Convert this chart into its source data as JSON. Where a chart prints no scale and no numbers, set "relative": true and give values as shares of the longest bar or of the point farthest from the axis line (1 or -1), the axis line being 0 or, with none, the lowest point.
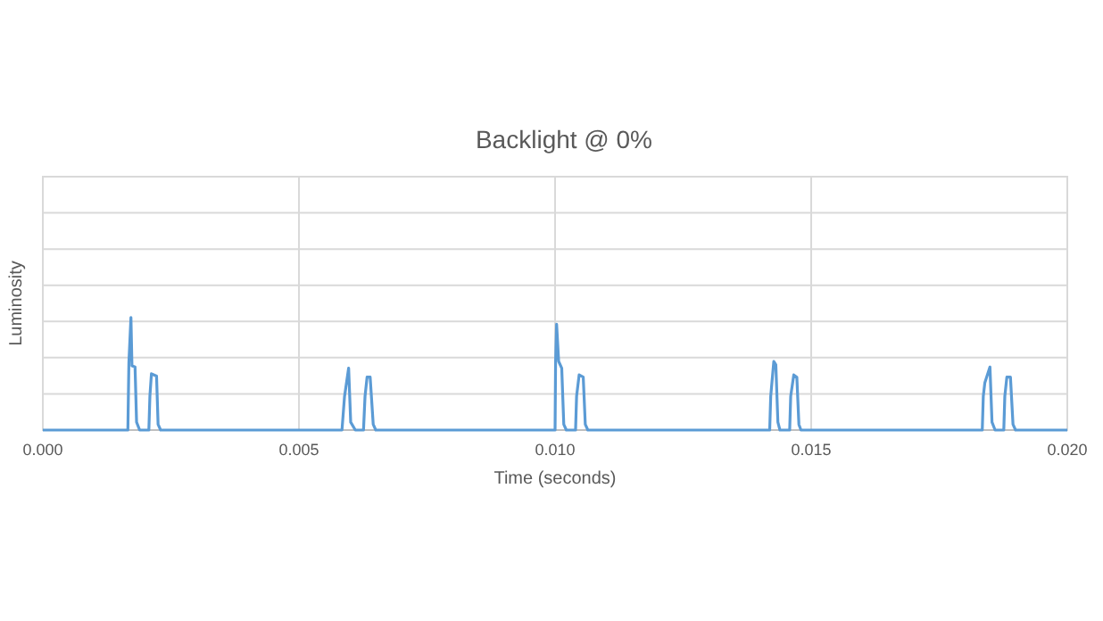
{
  "chart_data": {
    "type": "line",
    "title": "Backlight @ 0%",
    "xlabel": "Time (seconds)",
    "ylabel": "Luminosity",
    "relative": true,
    "grid": true,
    "marker": "none",
    "xlim": [
      0,
      0.02
    ],
    "xticks": [
      {
        "value": 0,
        "label": "0.000"
      },
      {
        "value": 0.005,
        "label": "0.005"
      },
      {
        "value": 0.01,
        "label": "0.010"
      },
      {
        "value": 0.015,
        "label": "0.015"
      },
      {
        "value": 0.02,
        "label": "0.020"
      }
    ],
    "series": [
      {
        "color": "#5b9bd5",
        "x": [
          0,
          0.00166,
          0.00168,
          0.00172,
          0.00174,
          0.0018,
          0.00183,
          0.00189,
          0.00207,
          0.00209,
          0.00212,
          0.00222,
          0.00225,
          0.0023,
          0.00584,
          0.00589,
          0.00597,
          0.00601,
          0.0061,
          0.00626,
          0.00629,
          0.00633,
          0.00639,
          0.00645,
          0.0065,
          0.01,
          0.01001,
          0.01003,
          0.01007,
          0.01013,
          0.01017,
          0.01022,
          0.0104,
          0.01042,
          0.01047,
          0.01055,
          0.01059,
          0.01064,
          0.01419,
          0.01421,
          0.01427,
          0.01431,
          0.01435,
          0.01439,
          0.01458,
          0.0146,
          0.01466,
          0.01472,
          0.01476,
          0.0148,
          0.01834,
          0.01836,
          0.01839,
          0.01849,
          0.01853,
          0.01859,
          0.01876,
          0.01878,
          0.01882,
          0.01889,
          0.01894,
          0.01899,
          0.02
        ],
        "values": [
          0,
          0,
          0.6,
          1,
          0.57,
          0.56,
          0.07,
          0,
          0,
          0.3,
          0.5,
          0.48,
          0.05,
          0,
          0,
          0.3,
          0.55,
          0.07,
          0,
          0,
          0.3,
          0.47,
          0.47,
          0.05,
          0,
          0,
          0.6,
          0.94,
          0.61,
          0.55,
          0.05,
          0,
          0,
          0.3,
          0.49,
          0.47,
          0.05,
          0,
          0,
          0.3,
          0.61,
          0.58,
          0.07,
          0,
          0,
          0.3,
          0.49,
          0.47,
          0.05,
          0,
          0,
          0.3,
          0.42,
          0.56,
          0.07,
          0,
          0,
          0.3,
          0.47,
          0.47,
          0.05,
          0,
          0
        ]
      }
    ]
  }
}
